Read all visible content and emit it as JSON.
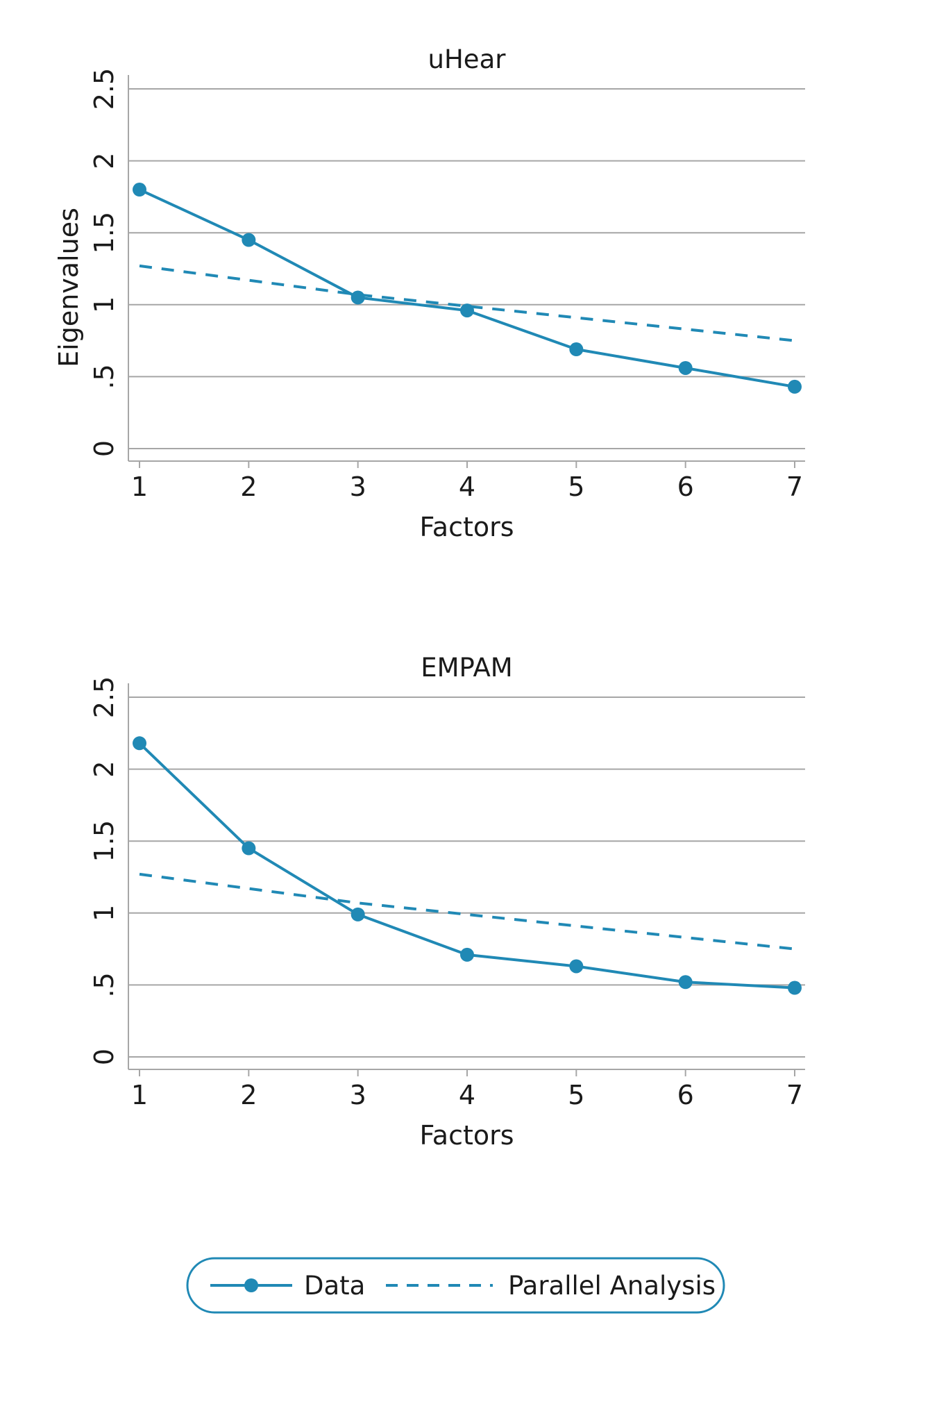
{
  "colors": {
    "data_series": "#2089b5",
    "parallel_series": "#2089b5",
    "gridline": "#a6a6a6",
    "axis": "#a6a6a6",
    "legend_border": "#2089b5",
    "background": "#ffffff"
  },
  "chart_data": [
    {
      "type": "line",
      "title": "uHear",
      "xlabel": "Factors",
      "ylabel": "Eigenvalues",
      "x": [
        1,
        2,
        3,
        4,
        5,
        6,
        7
      ],
      "xticks": [
        "1",
        "2",
        "3",
        "4",
        "5",
        "6",
        "7"
      ],
      "ylim": [
        0,
        2.5
      ],
      "yticks": [
        {
          "value": 0,
          "label": "0"
        },
        {
          "value": 0.5,
          "label": ".5"
        },
        {
          "value": 1,
          "label": "1"
        },
        {
          "value": 1.5,
          "label": "1.5"
        },
        {
          "value": 2,
          "label": "2"
        },
        {
          "value": 2.5,
          "label": "2.5"
        }
      ],
      "grid": true,
      "series": [
        {
          "name": "Data",
          "style": "solid-markers",
          "values": [
            1.8,
            1.45,
            1.05,
            0.96,
            0.69,
            0.56,
            0.43
          ]
        },
        {
          "name": "Parallel Analysis",
          "style": "dashed",
          "values": [
            1.27,
            1.17,
            1.07,
            0.99,
            0.91,
            0.83,
            0.75
          ]
        }
      ]
    },
    {
      "type": "line",
      "title": "EMPAM",
      "xlabel": "Factors",
      "ylabel": "",
      "x": [
        1,
        2,
        3,
        4,
        5,
        6,
        7
      ],
      "xticks": [
        "1",
        "2",
        "3",
        "4",
        "5",
        "6",
        "7"
      ],
      "ylim": [
        0,
        2.5
      ],
      "yticks": [
        {
          "value": 0,
          "label": "0"
        },
        {
          "value": 0.5,
          "label": ".5"
        },
        {
          "value": 1,
          "label": "1"
        },
        {
          "value": 1.5,
          "label": "1.5"
        },
        {
          "value": 2,
          "label": "2"
        },
        {
          "value": 2.5,
          "label": "2.5"
        }
      ],
      "grid": true,
      "series": [
        {
          "name": "Data",
          "style": "solid-markers",
          "values": [
            2.18,
            1.45,
            0.99,
            0.71,
            0.63,
            0.52,
            0.48
          ]
        },
        {
          "name": "Parallel Analysis",
          "style": "dashed",
          "values": [
            1.27,
            1.17,
            1.07,
            0.99,
            0.91,
            0.83,
            0.75
          ]
        }
      ]
    }
  ],
  "legend": {
    "placement": "bottom-center",
    "items": [
      {
        "label": "Data",
        "style": "solid-markers"
      },
      {
        "label": "Parallel Analysis",
        "style": "dashed"
      }
    ]
  }
}
